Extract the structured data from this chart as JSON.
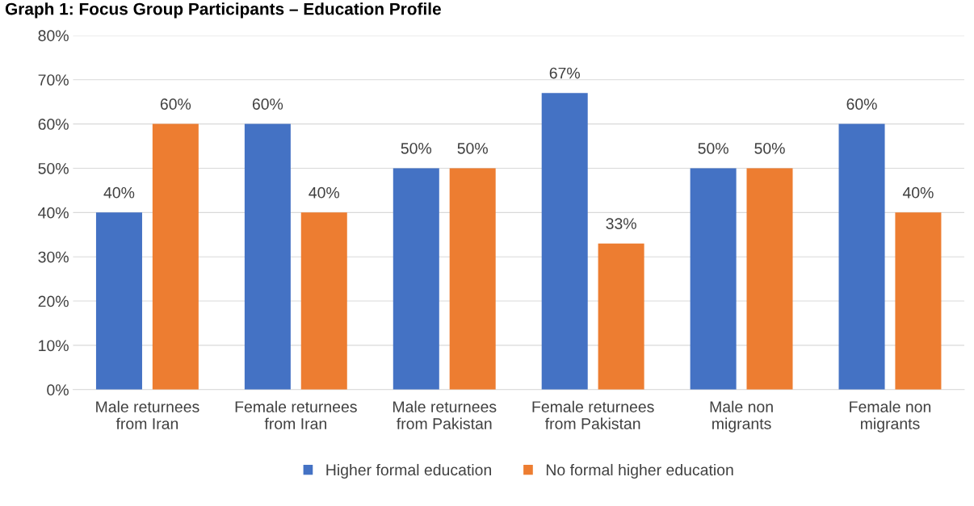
{
  "chart_data": {
    "type": "bar",
    "title": "Graph 1: Focus Group Participants – Education Profile",
    "categories": [
      "Male returnees\nfrom Iran",
      "Female returnees\nfrom Iran",
      "Male returnees\nfrom Pakistan",
      "Female returnees\nfrom Pakistan",
      "Male non\nmigrants",
      "Female non\nmigrants"
    ],
    "series": [
      {
        "name": "Higher formal education",
        "color": "#4472c4",
        "values": [
          40,
          60,
          50,
          67,
          50,
          60
        ],
        "value_labels": [
          "40%",
          "60%",
          "50%",
          "67%",
          "50%",
          "60%"
        ]
      },
      {
        "name": "No formal higher education",
        "color": "#ed7d31",
        "values": [
          60,
          40,
          50,
          33,
          50,
          40
        ],
        "value_labels": [
          "60%",
          "40%",
          "50%",
          "33%",
          "50%",
          "40%"
        ]
      }
    ],
    "ylim": [
      0,
      80
    ],
    "yticks": [
      {
        "value": 0,
        "label": "0%"
      },
      {
        "value": 10,
        "label": "10%"
      },
      {
        "value": 20,
        "label": "20%"
      },
      {
        "value": 30,
        "label": "30%"
      },
      {
        "value": 40,
        "label": "40%"
      },
      {
        "value": 50,
        "label": "50%"
      },
      {
        "value": 60,
        "label": "60%"
      },
      {
        "value": 70,
        "label": "70%"
      },
      {
        "value": 80,
        "label": "80%"
      }
    ],
    "grid": "y",
    "legend": "bottom"
  }
}
